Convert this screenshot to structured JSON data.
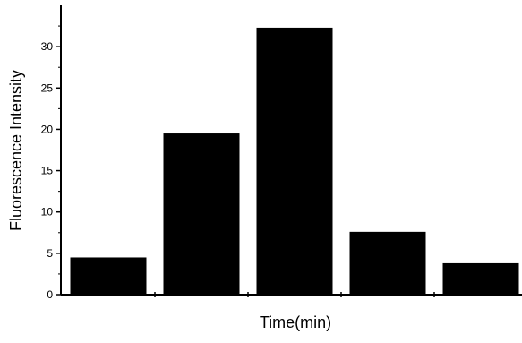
{
  "chart_data": {
    "type": "bar",
    "title": "",
    "xlabel": "Time(min)",
    "ylabel": "Fluorescence Intensity",
    "categories": [
      "",
      "",
      "",
      "",
      ""
    ],
    "values": [
      4.5,
      19.5,
      32.3,
      7.6,
      3.8
    ],
    "ylim": [
      0,
      35
    ],
    "yticks": [
      0,
      5,
      10,
      15,
      20,
      25,
      30
    ],
    "ytick_labels": [
      "0",
      "5",
      "10",
      "15",
      "20",
      "25",
      "30"
    ],
    "grid": false,
    "legend": "none",
    "bar_color": "#000000"
  }
}
